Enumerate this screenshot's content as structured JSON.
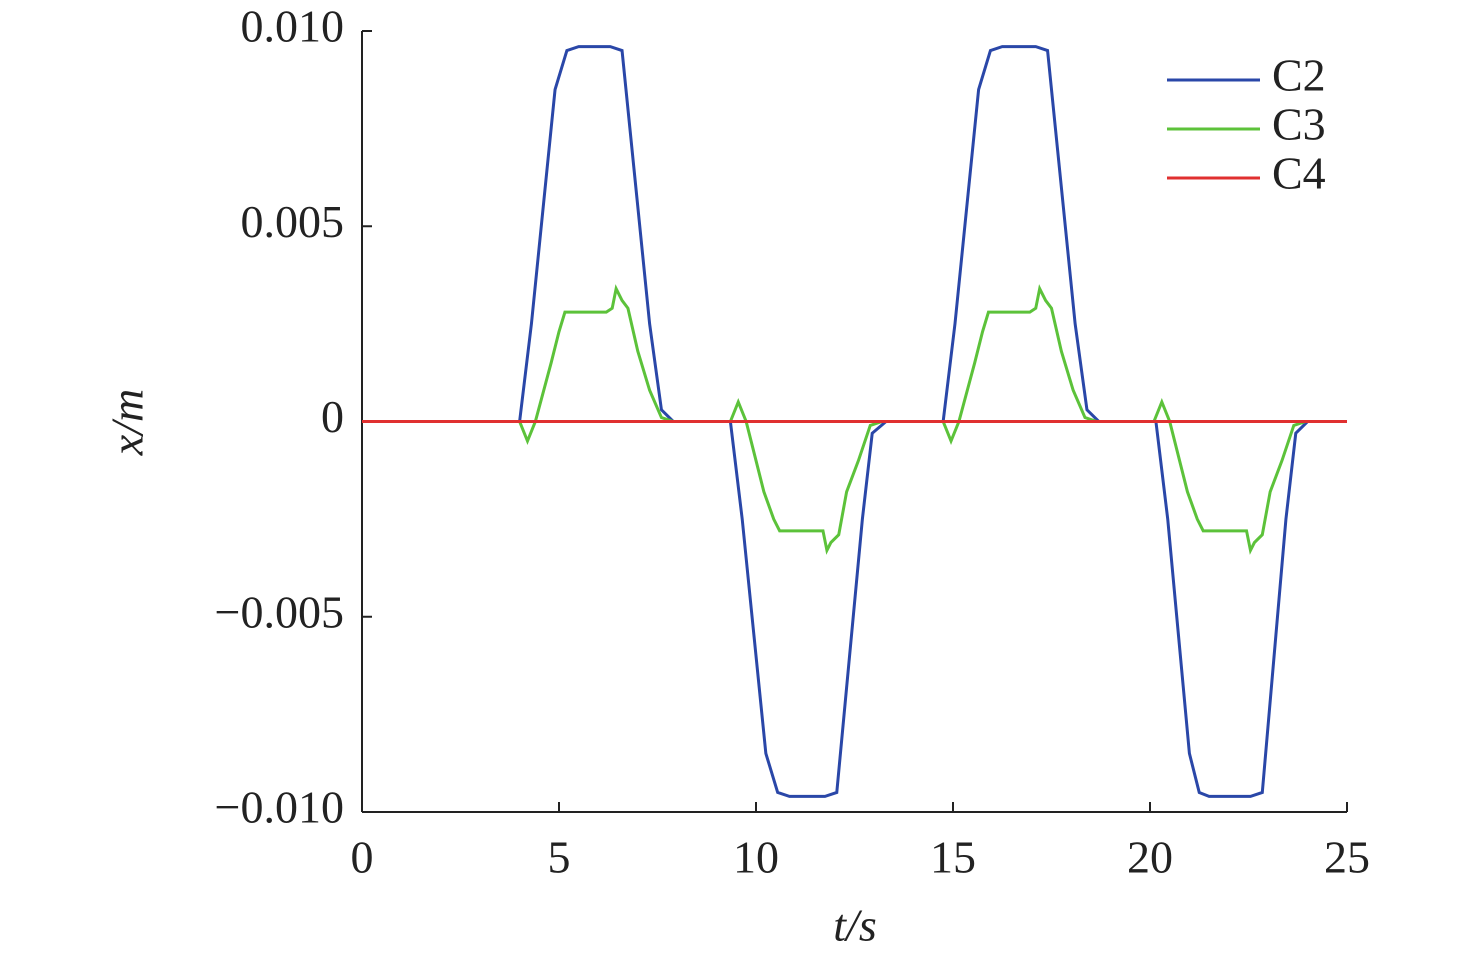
{
  "chart_data": {
    "type": "line",
    "x_label": "t/s",
    "y_label": "x/m",
    "xlim": [
      0,
      25
    ],
    "xticks": [
      0,
      5,
      10,
      15,
      20,
      25
    ],
    "ylim": [
      -0.01,
      0.01
    ],
    "yticks": [
      {
        "value": -0.01,
        "label": "−0.010"
      },
      {
        "value": -0.005,
        "label": "−0.005"
      },
      0,
      {
        "value": 0.005,
        "label": "0.005"
      },
      {
        "value": 0.01,
        "label": "0.010"
      }
    ],
    "legend": "upper right",
    "grid": false,
    "series": [
      {
        "name": "C2",
        "color": "#2a47a8",
        "x": [
          0,
          4.0,
          4.3,
          4.9,
          5.2,
          5.5,
          6.3,
          6.6,
          7.3,
          7.6,
          7.9,
          9.35,
          9.65,
          10.25,
          10.55,
          10.85,
          11.75,
          12.05,
          12.7,
          12.95,
          13.3,
          14.75,
          15.05,
          15.65,
          15.95,
          16.25,
          17.1,
          17.4,
          18.1,
          18.4,
          18.7,
          20.15,
          20.45,
          21.0,
          21.25,
          21.5,
          22.55,
          22.85,
          23.45,
          23.7,
          24.0,
          25
        ],
        "values": [
          0,
          0,
          0.0025,
          0.0085,
          0.0095,
          0.0096,
          0.0096,
          0.0095,
          0.0025,
          0.0003,
          0,
          0,
          -0.0025,
          -0.0085,
          -0.0095,
          -0.0096,
          -0.0096,
          -0.0095,
          -0.0025,
          -0.0003,
          0,
          0,
          0.0025,
          0.0085,
          0.0095,
          0.0096,
          0.0096,
          0.0095,
          0.0025,
          0.0003,
          0,
          0,
          -0.0025,
          -0.0085,
          -0.0095,
          -0.0096,
          -0.0096,
          -0.0095,
          -0.0025,
          -0.0003,
          0,
          0
        ]
      },
      {
        "name": "C3",
        "color": "#5cc23a",
        "x": [
          0,
          4.0,
          4.2,
          4.4,
          4.8,
          5.0,
          5.15,
          6.2,
          6.35,
          6.45,
          6.6,
          6.75,
          7.0,
          7.3,
          7.6,
          7.9,
          9.35,
          9.55,
          9.75,
          10.2,
          10.45,
          10.6,
          11.7,
          11.8,
          11.9,
          12.1,
          12.3,
          12.6,
          12.9,
          13.2,
          14.75,
          14.95,
          15.15,
          15.55,
          15.75,
          15.9,
          16.95,
          17.1,
          17.2,
          17.35,
          17.5,
          17.75,
          18.05,
          18.35,
          18.65,
          20.1,
          20.3,
          20.5,
          20.95,
          21.2,
          21.35,
          22.45,
          22.55,
          22.65,
          22.85,
          23.05,
          23.35,
          23.65,
          23.95,
          25
        ],
        "values": [
          0,
          0,
          -0.0005,
          0,
          0.0015,
          0.0023,
          0.0028,
          0.0028,
          0.0029,
          0.0034,
          0.0031,
          0.0029,
          0.0018,
          0.0008,
          0.0001,
          0,
          0,
          0.0005,
          0,
          -0.0018,
          -0.0025,
          -0.0028,
          -0.0028,
          -0.0033,
          -0.0031,
          -0.0029,
          -0.0018,
          -0.001,
          -0.0001,
          0,
          0,
          -0.0005,
          0,
          0.0015,
          0.0023,
          0.0028,
          0.0028,
          0.0029,
          0.0034,
          0.0031,
          0.0029,
          0.0018,
          0.0008,
          0.0001,
          0,
          0,
          0.0005,
          0,
          -0.0018,
          -0.0025,
          -0.0028,
          -0.0028,
          -0.0033,
          -0.0031,
          -0.0029,
          -0.0018,
          -0.001,
          -0.0001,
          0,
          0
        ]
      },
      {
        "name": "C4",
        "color": "#e03030",
        "x": [
          0,
          25
        ],
        "values": [
          0,
          0
        ]
      }
    ]
  }
}
